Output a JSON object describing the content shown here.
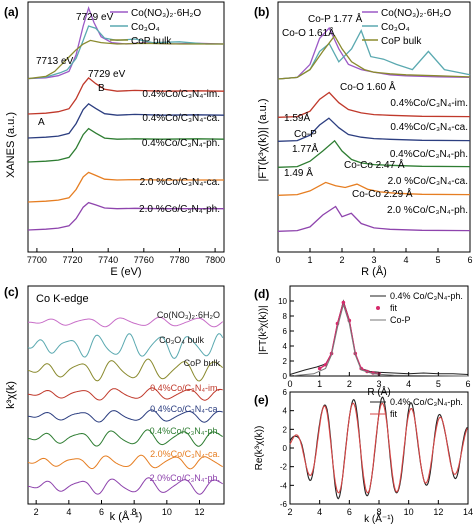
{
  "chart_data": [
    {
      "id": "a",
      "panel_label": "(a)",
      "type": "line",
      "xlabel": "E (eV)",
      "ylabel": "XANES (a.u.)",
      "xlim": [
        7695,
        7805
      ],
      "xticks": [
        7700,
        7720,
        7740,
        7760,
        7780,
        7800
      ],
      "legend": [
        "Co(NO₃)₂·6H₂O",
        "Co₃O₄",
        "CoP bulk"
      ],
      "annotations": [
        "7729 eV",
        "7713 eV",
        "7729 eV",
        "A",
        "B"
      ],
      "series": [
        {
          "name": "Co(NO₃)₂·6H₂O",
          "color": "#9b59c6",
          "offset": 0,
          "x": [
            7695,
            7705,
            7712,
            7718,
            7722,
            7726,
            7729,
            7732,
            7736,
            7742,
            7750,
            7760,
            7775,
            7790,
            7805
          ],
          "values": [
            0.02,
            0.03,
            0.06,
            0.12,
            0.35,
            0.75,
            1.0,
            0.8,
            0.6,
            0.52,
            0.5,
            0.52,
            0.5,
            0.51,
            0.5
          ]
        },
        {
          "name": "Co₃O₄",
          "color": "#5aa9b0",
          "offset": 0,
          "x": [
            7695,
            7705,
            7713,
            7717,
            7722,
            7726,
            7729,
            7733,
            7738,
            7745,
            7755,
            7765,
            7780,
            7795,
            7805
          ],
          "values": [
            0.02,
            0.04,
            0.1,
            0.14,
            0.3,
            0.55,
            0.75,
            0.72,
            0.58,
            0.55,
            0.57,
            0.52,
            0.53,
            0.5,
            0.5
          ]
        },
        {
          "name": "CoP bulk",
          "color": "#8a8a2e",
          "offset": 0,
          "x": [
            7695,
            7705,
            7710,
            7714,
            7718,
            7722,
            7726,
            7730,
            7736,
            7745,
            7760,
            7780,
            7805
          ],
          "values": [
            0.02,
            0.05,
            0.12,
            0.22,
            0.32,
            0.42,
            0.5,
            0.55,
            0.52,
            0.5,
            0.51,
            0.5,
            0.5
          ]
        }
      ],
      "stacked_labels": [
        "0.4%Co/C₃N₄-im.",
        "0.4%Co/C₃N₄-ca.",
        "0.4%Co/C₃N₄-ph.",
        "2.0 %Co/C₃N₄-ca.",
        "2.0 %Co/C₃N₄-ph."
      ],
      "stacked_series": [
        {
          "name": "0.4%Co/C₃N₄-im.",
          "color": "#c0392b",
          "x": [
            7695,
            7705,
            7712,
            7718,
            7722,
            7726,
            7729,
            7733,
            7738,
            7745,
            7755,
            7770,
            7790,
            7805
          ],
          "values": [
            0.0,
            0.02,
            0.06,
            0.14,
            0.4,
            0.78,
            0.95,
            0.8,
            0.65,
            0.6,
            0.62,
            0.6,
            0.61,
            0.6
          ]
        },
        {
          "name": "0.4%Co/C₃N₄-ca.",
          "color": "#2c3e80",
          "x": [
            7695,
            7705,
            7712,
            7718,
            7722,
            7726,
            7729,
            7733,
            7738,
            7745,
            7755,
            7770,
            7790,
            7805
          ],
          "values": [
            0.0,
            0.02,
            0.05,
            0.12,
            0.38,
            0.75,
            0.9,
            0.78,
            0.64,
            0.6,
            0.62,
            0.6,
            0.61,
            0.6
          ]
        },
        {
          "name": "0.4%Co/C₃N₄-ph.",
          "color": "#2e7d32",
          "x": [
            7695,
            7705,
            7712,
            7718,
            7722,
            7726,
            7729,
            7733,
            7738,
            7745,
            7755,
            7770,
            7790,
            7805
          ],
          "values": [
            0.0,
            0.02,
            0.05,
            0.12,
            0.36,
            0.72,
            0.88,
            0.76,
            0.63,
            0.6,
            0.61,
            0.6,
            0.61,
            0.6
          ]
        },
        {
          "name": "2.0 %Co/C₃N₄-ca.",
          "color": "#e67e22",
          "x": [
            7695,
            7705,
            7712,
            7718,
            7722,
            7726,
            7729,
            7733,
            7738,
            7745,
            7755,
            7770,
            7790,
            7805
          ],
          "values": [
            0.0,
            0.02,
            0.05,
            0.11,
            0.33,
            0.66,
            0.78,
            0.7,
            0.6,
            0.58,
            0.59,
            0.58,
            0.58,
            0.58
          ]
        },
        {
          "name": "2.0 %Co/C₃N₄-ph.",
          "color": "#8e44ad",
          "x": [
            7695,
            7705,
            7712,
            7718,
            7722,
            7726,
            7729,
            7733,
            7738,
            7745,
            7755,
            7770,
            7790,
            7805
          ],
          "values": [
            0.0,
            0.02,
            0.05,
            0.11,
            0.3,
            0.6,
            0.72,
            0.66,
            0.58,
            0.56,
            0.57,
            0.56,
            0.56,
            0.56
          ]
        }
      ]
    },
    {
      "id": "b",
      "panel_label": "(b)",
      "type": "line",
      "xlabel": "R (Å)",
      "ylabel": "|FT(k³χ(k))| (a.u.)",
      "xlim": [
        0,
        6
      ],
      "xticks": [
        0,
        1,
        2,
        3,
        4,
        5,
        6
      ],
      "legend": [
        "Co(NO₃)₂·6H₂O",
        "Co₃O₄",
        "CoP bulk"
      ],
      "annotations": [
        "Co-P 1.77 Å",
        "Co-O 1.61Å",
        "Co-O 1.60 Å",
        "1.59Å",
        "Co-P",
        "1.77Å",
        "1.49 Å",
        "Co-Co 2.47 Å",
        "Co-Co 2.29 Å"
      ],
      "series": [
        {
          "name": "Co(NO₃)₂·6H₂O",
          "color": "#9b59c6",
          "x": [
            0,
            0.6,
            1.0,
            1.3,
            1.6,
            1.9,
            2.2,
            2.6,
            3.0,
            3.5,
            4.0,
            5.0,
            6.0
          ],
          "values": [
            0.02,
            0.05,
            0.3,
            0.8,
            1.0,
            0.6,
            0.3,
            0.2,
            0.15,
            0.1,
            0.08,
            0.06,
            0.05
          ]
        },
        {
          "name": "Co₃O₄",
          "color": "#5aa9b0",
          "x": [
            0,
            0.6,
            1.0,
            1.3,
            1.6,
            1.9,
            2.3,
            2.6,
            2.9,
            3.3,
            3.7,
            4.2,
            4.7,
            5.2,
            6.0
          ],
          "values": [
            0.02,
            0.05,
            0.2,
            0.55,
            0.7,
            0.35,
            0.6,
            0.95,
            0.45,
            0.4,
            0.3,
            0.2,
            0.55,
            0.2,
            0.1
          ]
        },
        {
          "name": "CoP bulk",
          "color": "#8a8a2e",
          "x": [
            0,
            0.6,
            1.0,
            1.4,
            1.77,
            2.0,
            2.3,
            2.7,
            3.0,
            3.5,
            4.0,
            5.0,
            6.0
          ],
          "values": [
            0.02,
            0.05,
            0.2,
            0.55,
            0.85,
            0.6,
            0.35,
            0.2,
            0.15,
            0.12,
            0.1,
            0.08,
            0.06
          ]
        }
      ],
      "stacked_labels": [
        "0.4%Co/C₃N₄-im.",
        "0.4%Co/C₃N₄-ca.",
        "0.4%Co/C₃N₄-ph.",
        "2.0 %Co/C₃N₄-ca.",
        "2.0 %Co/C₃N₄-ph."
      ],
      "stacked_series": [
        {
          "name": "0.4%Co/C₃N₄-im.",
          "color": "#c0392b",
          "x": [
            0,
            0.6,
            1.0,
            1.3,
            1.6,
            1.9,
            2.2,
            2.6,
            3.0,
            3.5,
            4.5,
            6.0
          ],
          "values": [
            0.02,
            0.04,
            0.2,
            0.55,
            0.75,
            0.45,
            0.25,
            0.15,
            0.1,
            0.08,
            0.05,
            0.04
          ]
        },
        {
          "name": "0.4%Co/C₃N₄-ca.",
          "color": "#2c3e80",
          "x": [
            0,
            0.6,
            1.0,
            1.3,
            1.59,
            1.9,
            2.2,
            2.6,
            3.0,
            3.5,
            4.5,
            6.0
          ],
          "values": [
            0.02,
            0.04,
            0.2,
            0.5,
            0.7,
            0.42,
            0.22,
            0.14,
            0.1,
            0.08,
            0.05,
            0.04
          ]
        },
        {
          "name": "0.4%Co/C₃N₄-ph.",
          "color": "#2e7d32",
          "x": [
            0,
            0.6,
            1.0,
            1.4,
            1.77,
            2.0,
            2.3,
            2.6,
            3.0,
            3.5,
            4.5,
            6.0
          ],
          "values": [
            0.02,
            0.04,
            0.2,
            0.5,
            0.8,
            0.5,
            0.25,
            0.15,
            0.1,
            0.08,
            0.05,
            0.04
          ]
        },
        {
          "name": "2.0 %Co/C₃N₄-ca.",
          "color": "#e67e22",
          "x": [
            0,
            0.6,
            1.0,
            1.49,
            1.8,
            2.1,
            2.47,
            2.8,
            3.2,
            3.7,
            4.5,
            6.0
          ],
          "values": [
            0.02,
            0.04,
            0.15,
            0.4,
            0.3,
            0.25,
            0.35,
            0.2,
            0.12,
            0.08,
            0.05,
            0.04
          ]
        },
        {
          "name": "2.0 %Co/C₃N₄-ph.",
          "color": "#8e44ad",
          "x": [
            0,
            0.6,
            1.0,
            1.4,
            1.8,
            2.0,
            2.29,
            2.6,
            3.0,
            3.5,
            4.5,
            6.0
          ],
          "values": [
            0.02,
            0.04,
            0.15,
            0.5,
            0.75,
            0.45,
            0.55,
            0.25,
            0.12,
            0.08,
            0.05,
            0.04
          ]
        }
      ]
    },
    {
      "id": "c",
      "panel_label": "(c)",
      "type": "line",
      "title": "Co K-edge",
      "xlabel": "k (Å⁻¹)",
      "ylabel": "k³χ(k)",
      "xlim": [
        1.5,
        13.5
      ],
      "xticks": [
        2,
        4,
        6,
        8,
        10,
        12
      ],
      "stacked_labels": [
        "Co(NO₃)₂·6H₂O",
        "Co₃O₄ bulk",
        "CoP bulk",
        "0.4%Co/C₃N₄-im.",
        "0.4%Co/C₃N₄-ca.",
        "0.4%Co/C₃N₄-ph.",
        "2.0%Co/C₃N₄-ca.",
        "2.0%Co/C₃N₄-ph."
      ],
      "stacked_series": [
        {
          "name": "Co(NO₃)₂·6H₂O",
          "color": "#c86ec8",
          "freq": 2.8,
          "amp": 0.35,
          "phase": 0.0
        },
        {
          "name": "Co₃O₄ bulk",
          "color": "#5aa9b0",
          "freq": 3.4,
          "amp": 0.9,
          "phase": 0.6
        },
        {
          "name": "CoP bulk",
          "color": "#8a8a2e",
          "freq": 3.0,
          "amp": 0.8,
          "phase": 0.2
        },
        {
          "name": "0.4%Co/C₃N₄-im.",
          "color": "#c0392b",
          "freq": 2.9,
          "amp": 0.45,
          "phase": 0.4
        },
        {
          "name": "0.4%Co/C₃N₄-ca.",
          "color": "#2c3e80",
          "freq": 2.9,
          "amp": 0.45,
          "phase": 0.5
        },
        {
          "name": "0.4%Co/C₃N₄-ph.",
          "color": "#2e7d32",
          "freq": 3.0,
          "amp": 0.6,
          "phase": 0.3
        },
        {
          "name": "2.0%Co/C₃N₄-ca.",
          "color": "#e67e22",
          "freq": 3.1,
          "amp": 0.5,
          "phase": 0.7
        },
        {
          "name": "2.0%Co/C₃N₄-ph.",
          "color": "#8e44ad",
          "freq": 3.0,
          "amp": 0.6,
          "phase": 0.1
        }
      ]
    },
    {
      "id": "d",
      "panel_label": "(d)",
      "type": "line",
      "xlabel": "R (Å)",
      "ylabel": "|FT(k³χ(k))|",
      "xlim": [
        0,
        6
      ],
      "ylim": [
        0,
        12
      ],
      "xticks": [
        0,
        1,
        2,
        3,
        4,
        5,
        6
      ],
      "yticks": [
        0,
        2,
        4,
        6,
        8,
        10
      ],
      "legend": [
        "0.4% Co/C₃N₄-ph.",
        "fit",
        "Co-P"
      ],
      "series": [
        {
          "name": "0.4% Co/C₃N₄-ph.",
          "color": "#222222",
          "x": [
            0,
            0.5,
            0.9,
            1.2,
            1.4,
            1.6,
            1.8,
            2.0,
            2.2,
            2.4,
            2.7,
            3.0,
            3.5,
            4.0,
            4.5,
            5.0,
            5.5,
            6.0
          ],
          "values": [
            0.2,
            0.8,
            1.2,
            1.6,
            3.0,
            7.0,
            10.0,
            7.5,
            3.0,
            1.0,
            0.6,
            0.5,
            0.4,
            0.3,
            0.4,
            0.3,
            0.3,
            0.2
          ]
        },
        {
          "name": "fit",
          "color": "#d62a6b",
          "x": [
            1.0,
            1.2,
            1.4,
            1.6,
            1.8,
            2.0,
            2.2,
            2.4,
            2.6,
            2.8,
            3.0
          ],
          "values": [
            1.0,
            1.5,
            3.0,
            7.0,
            9.8,
            7.4,
            3.0,
            1.0,
            0.6,
            0.4,
            0.3
          ]
        },
        {
          "name": "Co-P",
          "color": "#777777",
          "x": [
            0,
            0.8,
            1.2,
            1.4,
            1.6,
            1.8,
            2.0,
            2.2,
            2.4,
            2.8,
            3.5,
            6.0
          ],
          "values": [
            0.0,
            0.3,
            1.0,
            2.8,
            6.5,
            9.5,
            7.0,
            2.8,
            0.8,
            0.3,
            0.1,
            0.0
          ]
        }
      ]
    },
    {
      "id": "e",
      "panel_label": "(e)",
      "type": "line",
      "xlabel": "k (Å⁻¹)",
      "ylabel": "Re(k³χ(k))",
      "xlim": [
        2,
        14
      ],
      "ylim": [
        -6,
        6
      ],
      "xticks": [
        2,
        4,
        6,
        8,
        10,
        12,
        14
      ],
      "yticks": [
        -6,
        -4,
        -2,
        0,
        2,
        4,
        6
      ],
      "legend": [
        "0.4% Co/C₃N₄-ph.",
        "fit"
      ],
      "series": [
        {
          "name": "0.4% Co/C₃N₄-ph.",
          "color": "#222222",
          "freq": 3.2,
          "amp": 5.2
        },
        {
          "name": "fit",
          "color": "#d64545",
          "freq": 3.2,
          "amp": 4.8
        }
      ]
    }
  ]
}
